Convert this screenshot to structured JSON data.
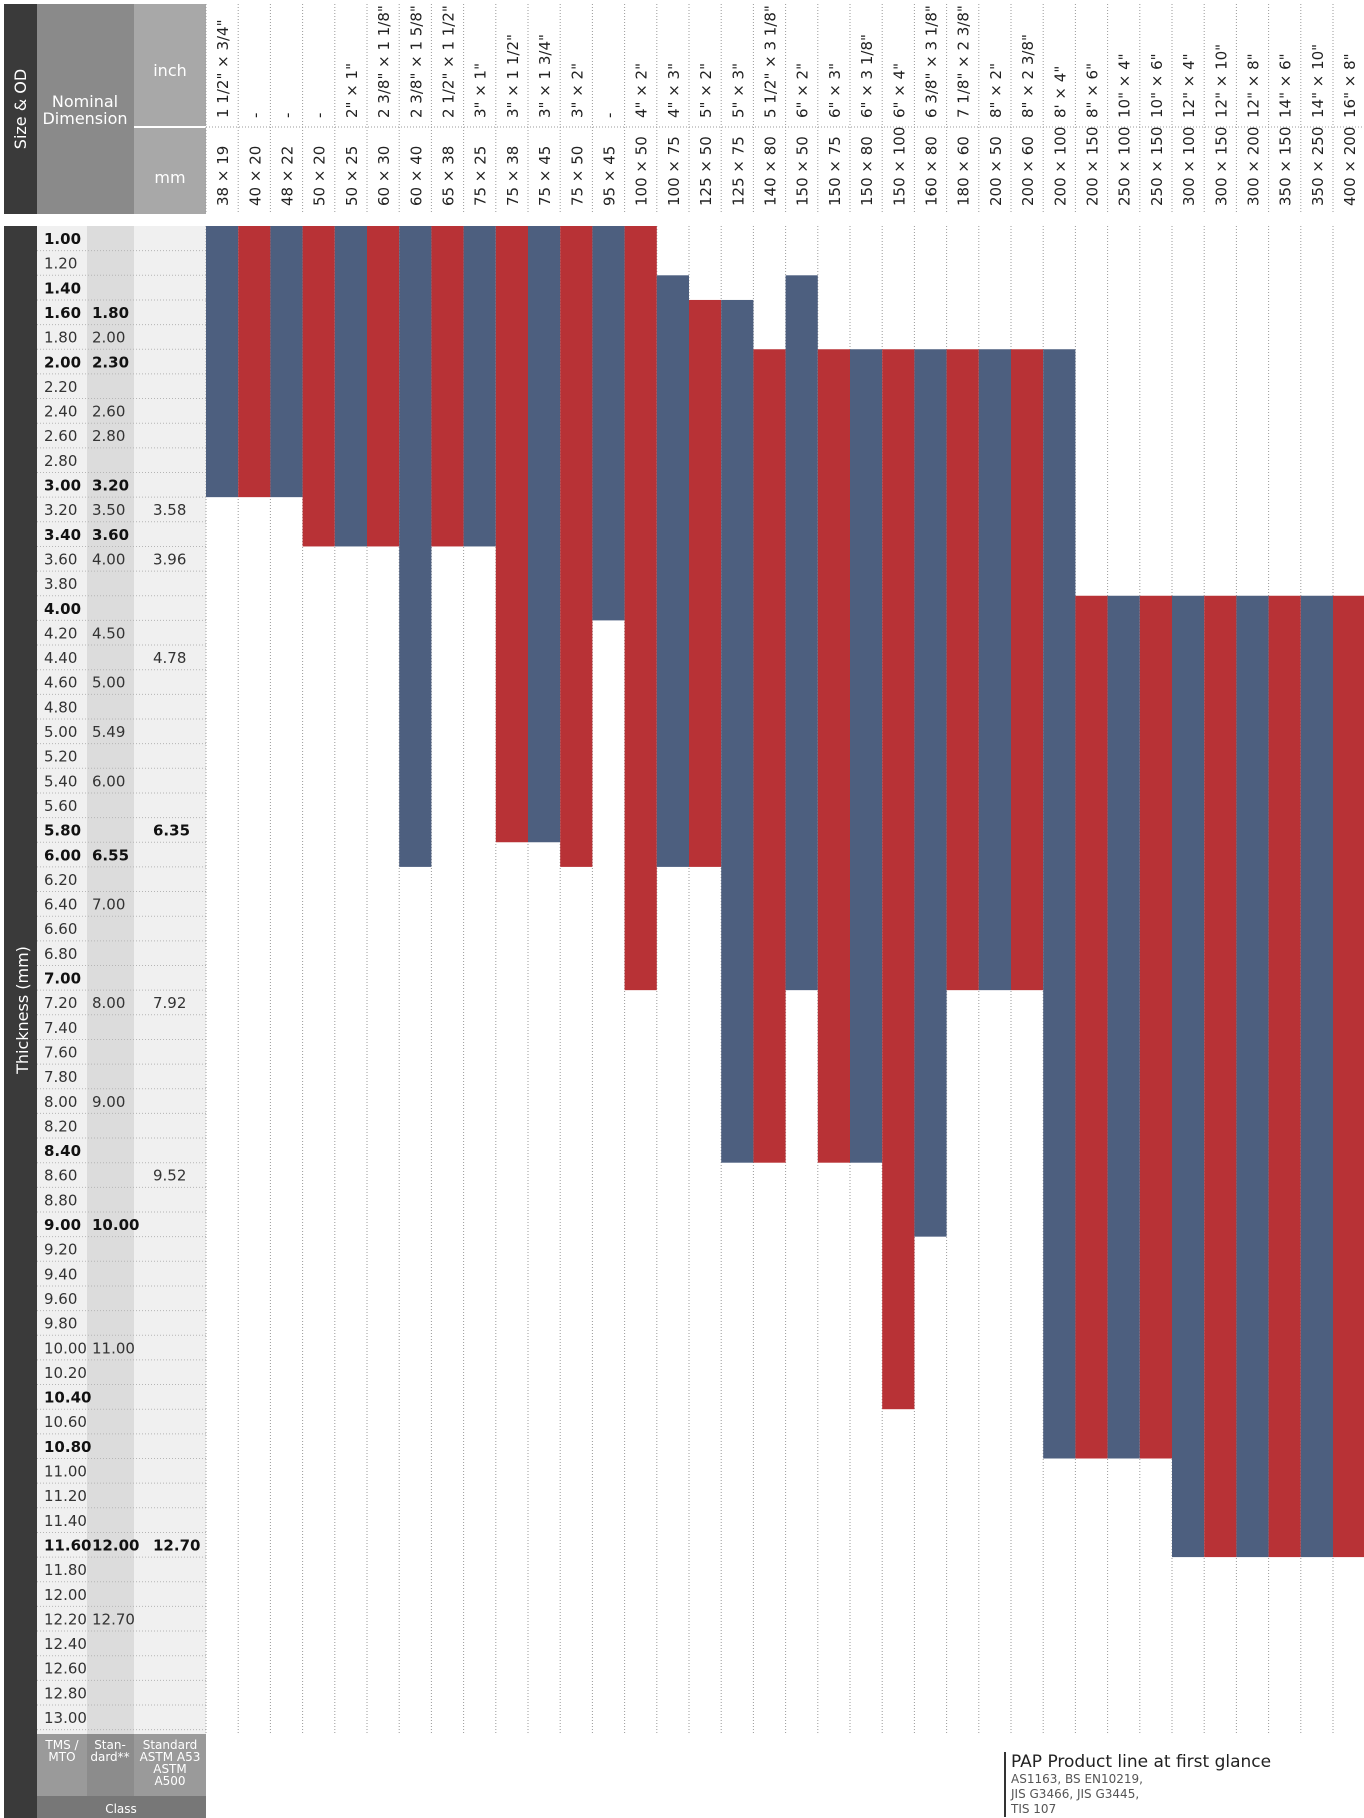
{
  "chart_data": {
    "type": "bar",
    "orientation": "vertical-range",
    "header": {
      "left_label": "Size & OD",
      "nominal_label": "Nominal Dimension",
      "inch_label": "inch",
      "mm_label": "mm"
    },
    "y_axis_label": "Thickness (mm)",
    "class_label": "Class",
    "class_columns": [
      "TMS / MTO",
      "Stan-dard**",
      "Standard ASTM A53 ASTM A500"
    ],
    "colors": {
      "blue": "#4d5f7f",
      "red": "#b83236"
    },
    "categories_inch": [
      "1 1/2\" × 3/4\"",
      "-",
      "-",
      "-",
      "2\" × 1\"",
      "2 3/8\" × 1 1/8\"",
      "2 3/8\" × 1 5/8\"",
      "2 1/2\" × 1 1/2\"",
      "3\" × 1\"",
      "3\" × 1 1/2\"",
      "3\" × 1 3/4\"",
      "3\" × 2\"",
      "-",
      "4\" × 2\"",
      "4\" × 3\"",
      "5\" × 2\"",
      "5\" × 3\"",
      "5 1/2\" × 3 1/8\"",
      "6\" × 2\"",
      "6\" × 3\"",
      "6\" × 3 1/8\"",
      "6\" × 4\"",
      "6 3/8\" × 3 1/8\"",
      "7 1/8\" × 2 3/8\"",
      "8\" × 2\"",
      "8\" × 2 3/8\"",
      "8' × 4\"",
      "8\" × 6\"",
      "10\" × 4\"",
      "10\" × 6\"",
      "12\" × 4\"",
      "12\" × 10\"",
      "12\" × 8\"",
      "14\" × 6\"",
      "14\" × 10\"",
      "16\" × 8\""
    ],
    "categories_mm": [
      "38 × 19",
      "40 × 20",
      "48 × 22",
      "50 × 20",
      "50 × 25",
      "60 × 30",
      "60 × 40",
      "65 × 38",
      "75 × 25",
      "75 × 38",
      "75 × 45",
      "75 × 50",
      "95 × 45",
      "100 × 50",
      "100 × 75",
      "125 × 50",
      "125 × 75",
      "140 × 80",
      "150 × 50",
      "150 × 75",
      "150 × 80",
      "150 × 100",
      "160 × 80",
      "180 × 60",
      "200 × 50",
      "200 × 60",
      "200 × 100",
      "200 × 150",
      "250 × 100",
      "250 × 150",
      "300 × 100",
      "300 × 150",
      "300 × 200",
      "350 × 150",
      "350 × 250",
      "400 × 200"
    ],
    "thickness_rows": [
      {
        "v": "1.00",
        "s": "",
        "a": "",
        "b": true
      },
      {
        "v": "1.20",
        "s": "",
        "a": "",
        "b": false
      },
      {
        "v": "1.40",
        "s": "",
        "a": "",
        "b": true
      },
      {
        "v": "1.60",
        "s": "1.80",
        "a": "",
        "b": true
      },
      {
        "v": "1.80",
        "s": "2.00",
        "a": "",
        "b": false
      },
      {
        "v": "2.00",
        "s": "2.30",
        "a": "",
        "b": true
      },
      {
        "v": "2.20",
        "s": "",
        "a": "",
        "b": false
      },
      {
        "v": "2.40",
        "s": "2.60",
        "a": "",
        "b": false
      },
      {
        "v": "2.60",
        "s": "2.80",
        "a": "",
        "b": false
      },
      {
        "v": "2.80",
        "s": "",
        "a": "",
        "b": false
      },
      {
        "v": "3.00",
        "s": "3.20",
        "a": "",
        "b": true
      },
      {
        "v": "3.20",
        "s": "3.50",
        "a": "3.58",
        "b": false
      },
      {
        "v": "3.40",
        "s": "3.60",
        "a": "",
        "b": true
      },
      {
        "v": "3.60",
        "s": "4.00",
        "a": "3.96",
        "b": false
      },
      {
        "v": "3.80",
        "s": "",
        "a": "",
        "b": false
      },
      {
        "v": "4.00",
        "s": "",
        "a": "",
        "b": true
      },
      {
        "v": "4.20",
        "s": "4.50",
        "a": "",
        "b": false
      },
      {
        "v": "4.40",
        "s": "",
        "a": "4.78",
        "b": false
      },
      {
        "v": "4.60",
        "s": "5.00",
        "a": "",
        "b": false
      },
      {
        "v": "4.80",
        "s": "",
        "a": "",
        "b": false
      },
      {
        "v": "5.00",
        "s": "5.49",
        "a": "",
        "b": false
      },
      {
        "v": "5.20",
        "s": "",
        "a": "",
        "b": false
      },
      {
        "v": "5.40",
        "s": "6.00",
        "a": "",
        "b": false
      },
      {
        "v": "5.60",
        "s": "",
        "a": "",
        "b": false
      },
      {
        "v": "5.80",
        "s": "",
        "a": "6.35",
        "b": true
      },
      {
        "v": "6.00",
        "s": "6.55",
        "a": "",
        "b": true
      },
      {
        "v": "6.20",
        "s": "",
        "a": "",
        "b": false
      },
      {
        "v": "6.40",
        "s": "7.00",
        "a": "",
        "b": false
      },
      {
        "v": "6.60",
        "s": "",
        "a": "",
        "b": false
      },
      {
        "v": "6.80",
        "s": "",
        "a": "",
        "b": false
      },
      {
        "v": "7.00",
        "s": "",
        "a": "",
        "b": true
      },
      {
        "v": "7.20",
        "s": "8.00",
        "a": "7.92",
        "b": false
      },
      {
        "v": "7.40",
        "s": "",
        "a": "",
        "b": false
      },
      {
        "v": "7.60",
        "s": "",
        "a": "",
        "b": false
      },
      {
        "v": "7.80",
        "s": "",
        "a": "",
        "b": false
      },
      {
        "v": "8.00",
        "s": "9.00",
        "a": "",
        "b": false
      },
      {
        "v": "8.20",
        "s": "",
        "a": "",
        "b": false
      },
      {
        "v": "8.40",
        "s": "",
        "a": "",
        "b": true
      },
      {
        "v": "8.60",
        "s": "",
        "a": "9.52",
        "b": false
      },
      {
        "v": "8.80",
        "s": "",
        "a": "",
        "b": false
      },
      {
        "v": "9.00",
        "s": "10.00",
        "a": "",
        "b": true
      },
      {
        "v": "9.20",
        "s": "",
        "a": "",
        "b": false
      },
      {
        "v": "9.40",
        "s": "",
        "a": "",
        "b": false
      },
      {
        "v": "9.60",
        "s": "",
        "a": "",
        "b": false
      },
      {
        "v": "9.80",
        "s": "",
        "a": "",
        "b": false
      },
      {
        "v": "10.00",
        "s": "11.00",
        "a": "",
        "b": false
      },
      {
        "v": "10.20",
        "s": "",
        "a": "",
        "b": false
      },
      {
        "v": "10.40",
        "s": "",
        "a": "",
        "b": true
      },
      {
        "v": "10.60",
        "s": "",
        "a": "",
        "b": false
      },
      {
        "v": "10.80",
        "s": "",
        "a": "",
        "b": true
      },
      {
        "v": "11.00",
        "s": "",
        "a": "",
        "b": false
      },
      {
        "v": "11.20",
        "s": "",
        "a": "",
        "b": false
      },
      {
        "v": "11.40",
        "s": "",
        "a": "",
        "b": false
      },
      {
        "v": "11.60",
        "s": "12.00",
        "a": "12.70",
        "b": true
      },
      {
        "v": "11.80",
        "s": "",
        "a": "",
        "b": false
      },
      {
        "v": "12.00",
        "s": "",
        "a": "",
        "b": false
      },
      {
        "v": "12.20",
        "s": "12.70",
        "a": "",
        "b": false
      },
      {
        "v": "12.40",
        "s": "",
        "a": "",
        "b": false
      },
      {
        "v": "12.60",
        "s": "",
        "a": "",
        "b": false
      },
      {
        "v": "12.80",
        "s": "",
        "a": "",
        "b": false
      },
      {
        "v": "13.00",
        "s": "",
        "a": "",
        "b": false
      }
    ],
    "ranges": [
      {
        "start": 0,
        "end": 10,
        "color": "blue"
      },
      {
        "start": 0,
        "end": 10,
        "color": "red"
      },
      {
        "start": 0,
        "end": 10,
        "color": "blue"
      },
      {
        "start": 0,
        "end": 12,
        "color": "red"
      },
      {
        "start": 0,
        "end": 12,
        "color": "blue"
      },
      {
        "start": 0,
        "end": 12,
        "color": "red"
      },
      {
        "start": 0,
        "end": 25,
        "color": "blue"
      },
      {
        "start": 0,
        "end": 12,
        "color": "red"
      },
      {
        "start": 0,
        "end": 12,
        "color": "blue"
      },
      {
        "start": 0,
        "end": 24,
        "color": "red"
      },
      {
        "start": 0,
        "end": 24,
        "color": "blue"
      },
      {
        "start": 0,
        "end": 25,
        "color": "red"
      },
      {
        "start": 0,
        "end": 15,
        "color": "blue"
      },
      {
        "start": 0,
        "end": 30,
        "color": "red"
      },
      {
        "start": 2,
        "end": 25,
        "color": "blue"
      },
      {
        "start": 3,
        "end": 25,
        "color": "red"
      },
      {
        "start": 3,
        "end": 37,
        "color": "blue"
      },
      {
        "start": 5,
        "end": 37,
        "color": "red"
      },
      {
        "start": 2,
        "end": 30,
        "color": "blue"
      },
      {
        "start": 5,
        "end": 37,
        "color": "red"
      },
      {
        "start": 5,
        "end": 37,
        "color": "blue"
      },
      {
        "start": 5,
        "end": 47,
        "color": "red"
      },
      {
        "start": 5,
        "end": 40,
        "color": "blue"
      },
      {
        "start": 5,
        "end": 30,
        "color": "red"
      },
      {
        "start": 5,
        "end": 30,
        "color": "blue"
      },
      {
        "start": 5,
        "end": 30,
        "color": "red"
      },
      {
        "start": 5,
        "end": 49,
        "color": "blue"
      },
      {
        "start": 15,
        "end": 49,
        "color": "red"
      },
      {
        "start": 15,
        "end": 49,
        "color": "blue"
      },
      {
        "start": 15,
        "end": 49,
        "color": "red"
      },
      {
        "start": 15,
        "end": 53,
        "color": "blue"
      },
      {
        "start": 15,
        "end": 53,
        "color": "red"
      },
      {
        "start": 15,
        "end": 53,
        "color": "blue"
      },
      {
        "start": 15,
        "end": 53,
        "color": "red"
      },
      {
        "start": 15,
        "end": 53,
        "color": "blue"
      },
      {
        "start": 15,
        "end": 53,
        "color": "red"
      }
    ]
  },
  "caption": {
    "title": "PAP Product  line at first glance",
    "line1": "AS1163, BS EN10219,",
    "line2": "JIS G3466, JIS G3445,",
    "line3": "TIS 107"
  }
}
